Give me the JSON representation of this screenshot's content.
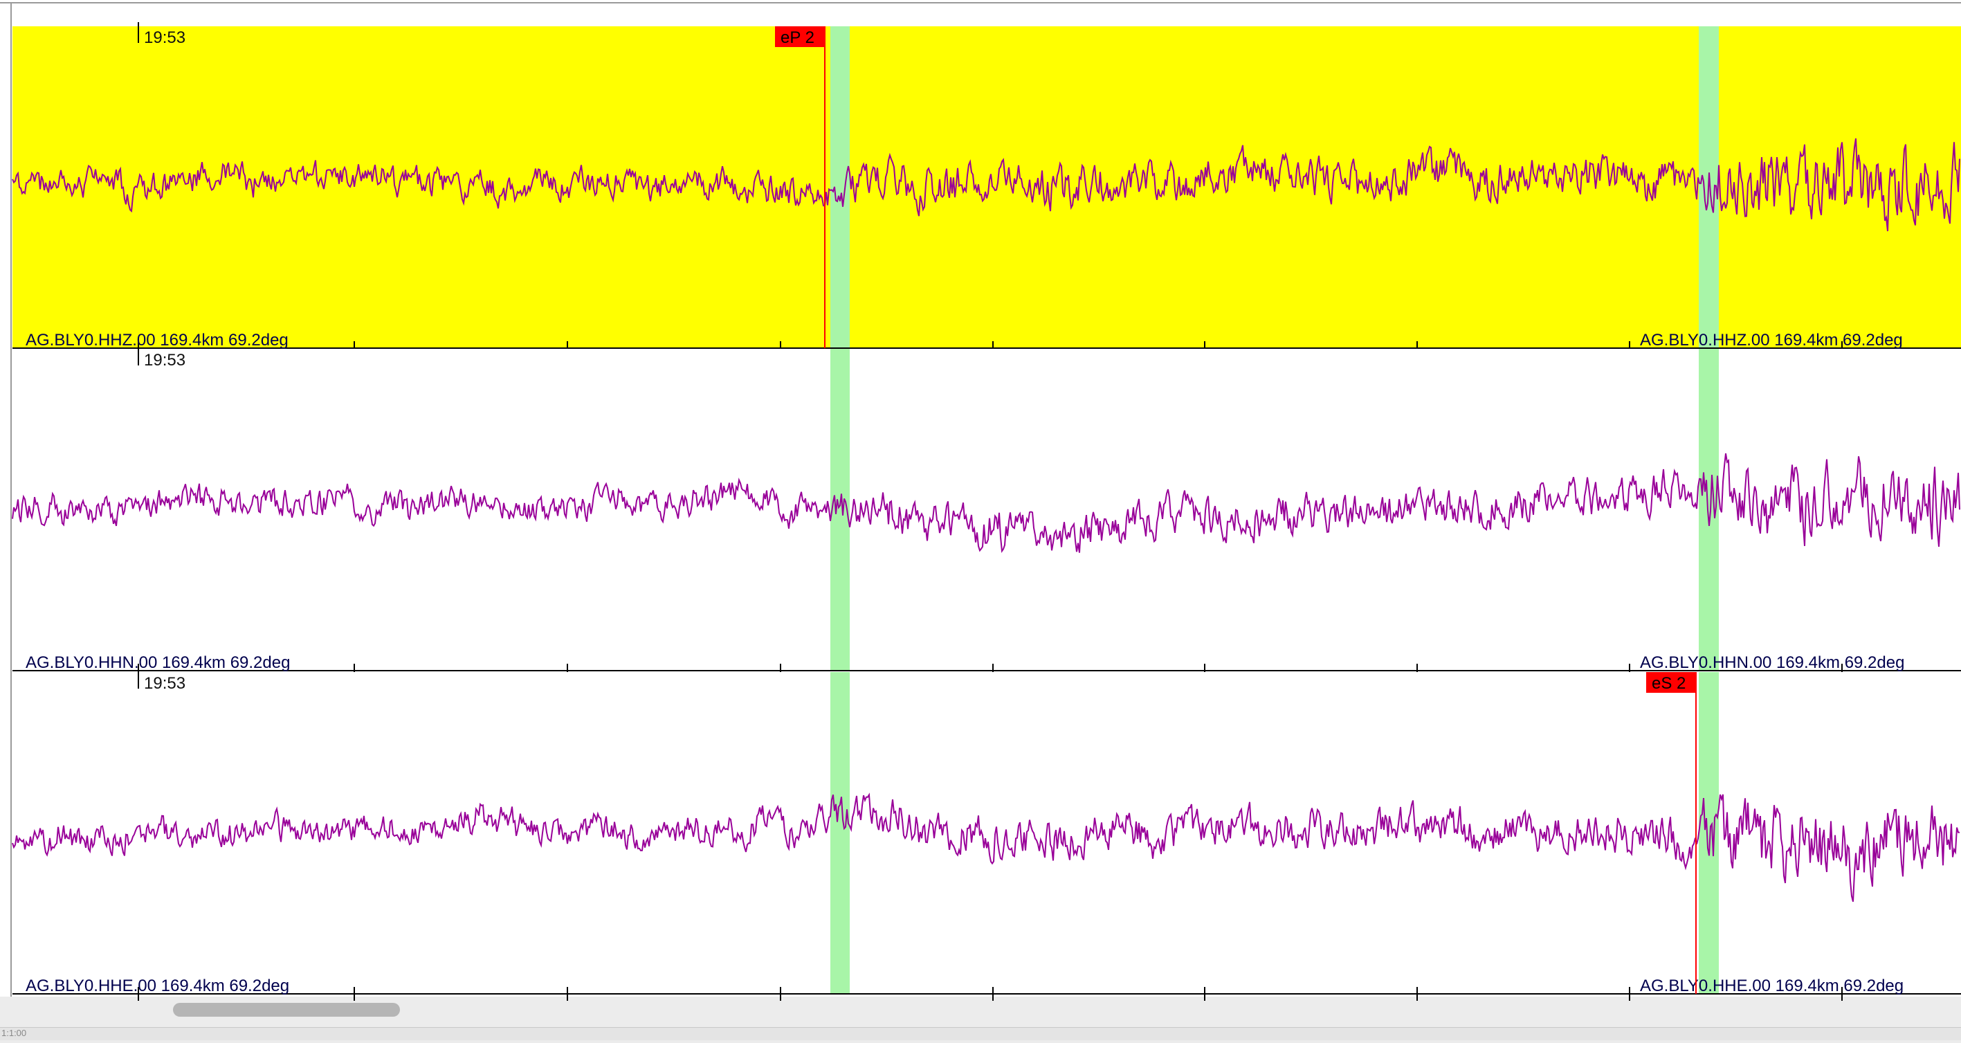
{
  "traces": [
    {
      "label_left": "AG.BLY0.HHZ.00 169.4km 69.2deg",
      "label_right": "AG.BLY0.HHZ.00 169.4km 69.2deg",
      "time_label": "19:53",
      "background": "#ffff00",
      "color": "#990099",
      "picks": [
        {
          "label": "eP 2",
          "time": 1192
        }
      ],
      "seed": 11
    },
    {
      "label_left": "AG.BLY0.HHN.00 169.4km 69.2deg",
      "label_right": "AG.BLY0.HHN.00 169.4km 69.2deg",
      "time_label": "19:53",
      "background": "#ffffff",
      "color": "#990099",
      "picks": [],
      "seed": 23
    },
    {
      "label_left": "AG.BLY0.HHE.00 169.4km 69.2deg",
      "label_right": "AG.BLY0.HHE.00 169.4km 69.2deg",
      "time_label": "19:53",
      "background": "#ffffff",
      "color": "#990099",
      "picks": [
        {
          "label": "eS 2",
          "time": 2451
        }
      ],
      "seed": 37
    }
  ],
  "colors": {
    "pick_flag": "#ff0000",
    "pick_text": "#000000",
    "highlight_band": "#a8f5a8",
    "axis": "#000000",
    "label_text": "#00004d"
  },
  "status": {
    "text": "1:1:00"
  }
}
